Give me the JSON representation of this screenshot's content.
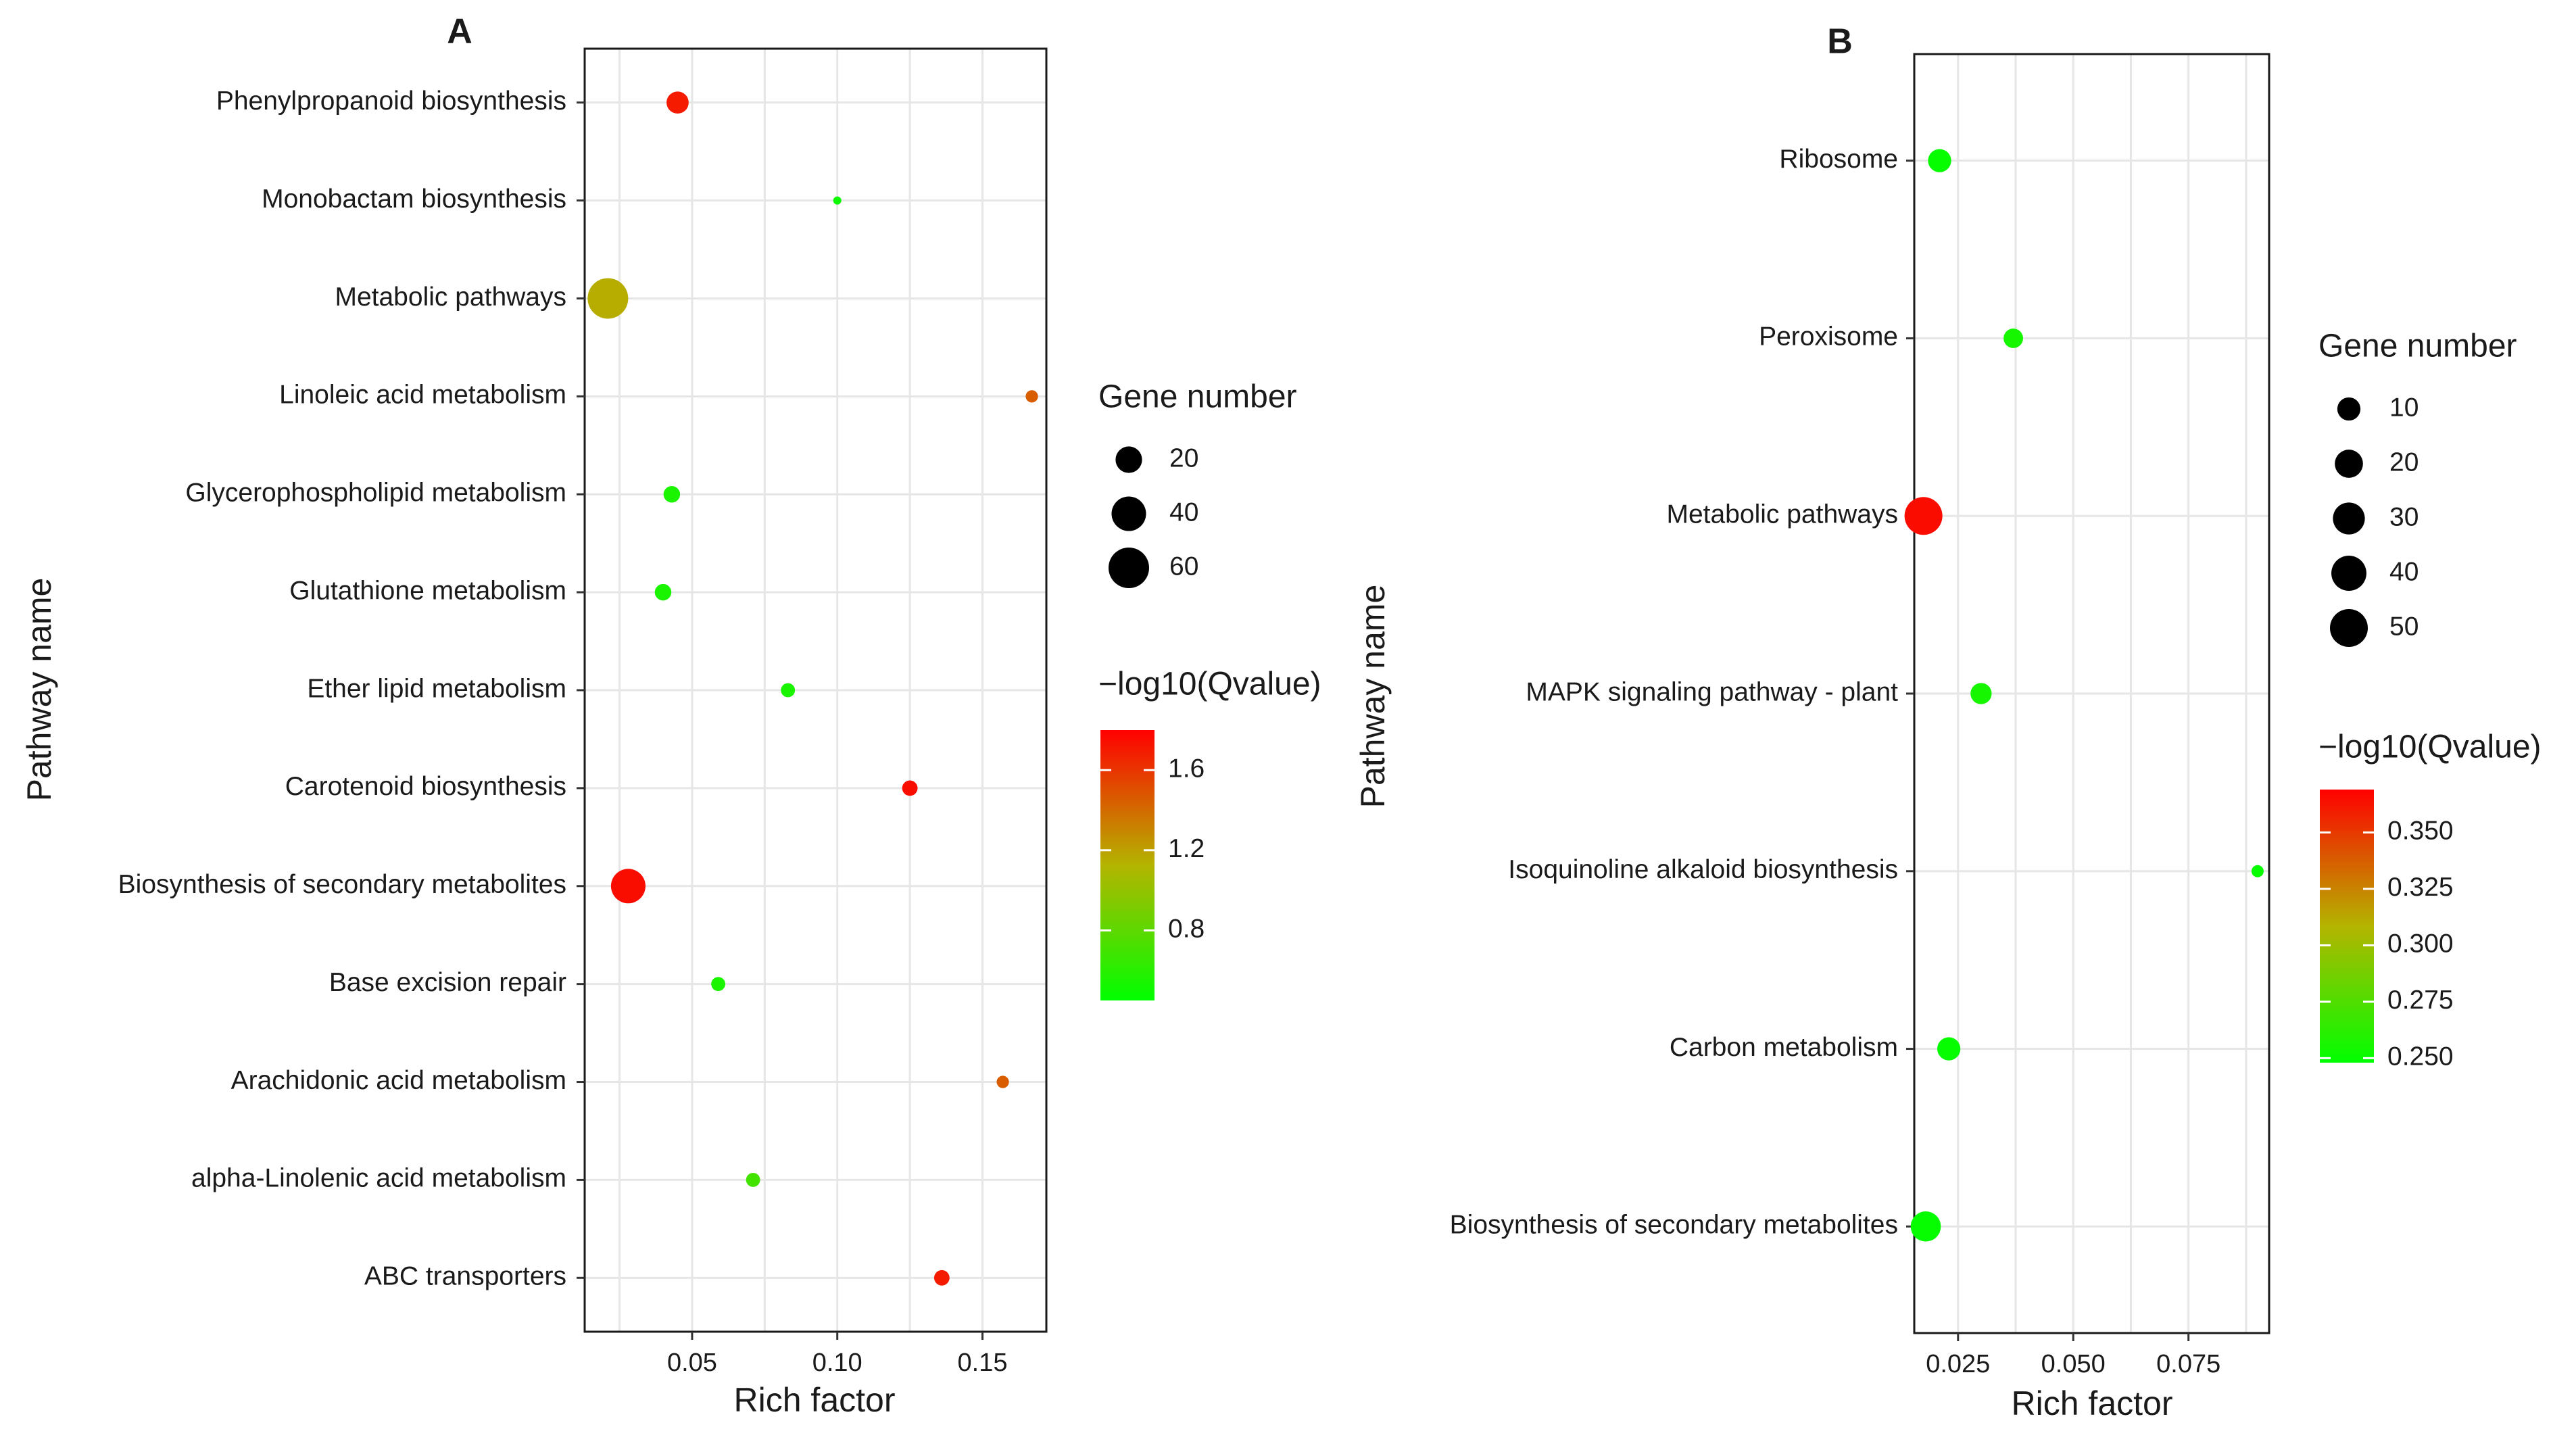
{
  "chart_data": [
    {
      "type": "scatter",
      "panel_label": "A",
      "xlabel": "Rich factor",
      "ylabel": "Pathway name",
      "xlim": [
        0.013,
        0.172
      ],
      "x_ticks": [
        0.05,
        0.1,
        0.15
      ],
      "x_tick_labels": [
        "0.05",
        "0.10",
        "0.15"
      ],
      "size_legend": {
        "title": "Gene number",
        "values": [
          20,
          40,
          60
        ],
        "labels": [
          "20",
          "40",
          "60"
        ]
      },
      "color_legend": {
        "title": "−log10(Qvalue)",
        "range": [
          0.45,
          1.8
        ],
        "ticks": [
          1.6,
          1.2,
          0.8
        ],
        "tick_labels": [
          "1.6",
          "1.2",
          "0.8"
        ],
        "low_color": "#00ff00",
        "high_color": "#ff0000"
      },
      "categories": [
        "Phenylpropanoid biosynthesis",
        "Monobactam biosynthesis",
        "Metabolic pathways",
        "Linoleic acid metabolism",
        "Glycerophospholipid metabolism",
        "Glutathione metabolism",
        "Ether lipid metabolism",
        "Carotenoid biosynthesis",
        "Biosynthesis of secondary metabolites",
        "Base excision repair",
        "Arachidonic acid metabolism",
        "alpha-Linolenic acid metabolism",
        "ABC transporters"
      ],
      "points": [
        {
          "pathway": "Phenylpropanoid biosynthesis",
          "rich_factor": 0.045,
          "gene_number": 12,
          "neg_log10_q": 1.7
        },
        {
          "pathway": "Monobactam biosynthesis",
          "rich_factor": 0.1,
          "gene_number": 1,
          "neg_log10_q": 0.5
        },
        {
          "pathway": "Metabolic pathways",
          "rich_factor": 0.021,
          "gene_number": 60,
          "neg_log10_q": 1.15
        },
        {
          "pathway": "Linoleic acid metabolism",
          "rich_factor": 0.167,
          "gene_number": 2,
          "neg_log10_q": 1.45
        },
        {
          "pathway": "Glycerophospholipid metabolism",
          "rich_factor": 0.043,
          "gene_number": 5,
          "neg_log10_q": 0.55
        },
        {
          "pathway": "Glutathione metabolism",
          "rich_factor": 0.04,
          "gene_number": 5,
          "neg_log10_q": 0.55
        },
        {
          "pathway": "Ether lipid metabolism",
          "rich_factor": 0.083,
          "gene_number": 3,
          "neg_log10_q": 0.55
        },
        {
          "pathway": "Carotenoid biosynthesis",
          "rich_factor": 0.125,
          "gene_number": 4,
          "neg_log10_q": 1.75
        },
        {
          "pathway": "Biosynthesis of secondary metabolites",
          "rich_factor": 0.028,
          "gene_number": 40,
          "neg_log10_q": 1.75
        },
        {
          "pathway": "Base excision repair",
          "rich_factor": 0.059,
          "gene_number": 3,
          "neg_log10_q": 0.55
        },
        {
          "pathway": "Arachidonic acid metabolism",
          "rich_factor": 0.157,
          "gene_number": 2,
          "neg_log10_q": 1.45
        },
        {
          "pathway": "alpha-Linolenic acid metabolism",
          "rich_factor": 0.071,
          "gene_number": 3,
          "neg_log10_q": 0.7
        },
        {
          "pathway": "ABC transporters",
          "rich_factor": 0.136,
          "gene_number": 4,
          "neg_log10_q": 1.7
        }
      ]
    },
    {
      "type": "scatter",
      "panel_label": "B",
      "xlabel": "Rich factor",
      "ylabel": "Pathway name",
      "xlim": [
        0.0155,
        0.0925
      ],
      "x_ticks": [
        0.025,
        0.05,
        0.075
      ],
      "x_tick_labels": [
        "0.025",
        "0.050",
        "0.075"
      ],
      "size_legend": {
        "title": "Gene number",
        "values": [
          10,
          20,
          30,
          40,
          50
        ],
        "labels": [
          "10",
          "20",
          "30",
          "40",
          "50"
        ]
      },
      "color_legend": {
        "title": "−log10(Qvalue)",
        "range": [
          0.248,
          0.369
        ],
        "ticks": [
          0.35,
          0.325,
          0.3,
          0.275,
          0.25
        ],
        "tick_labels": [
          "0.350",
          "0.325",
          "0.300",
          "0.275",
          "0.250"
        ],
        "low_color": "#00ff00",
        "high_color": "#ff0000"
      },
      "categories": [
        "Ribosome",
        "Peroxisome",
        "Metabolic pathways",
        "MAPK signaling pathway - plant",
        "Isoquinoline alkaloid biosynthesis",
        "Carbon metabolism",
        "Biosynthesis of secondary metabolites"
      ],
      "points": [
        {
          "pathway": "Ribosome",
          "rich_factor": 0.021,
          "gene_number": 10,
          "neg_log10_q": 0.25
        },
        {
          "pathway": "Peroxisome",
          "rich_factor": 0.037,
          "gene_number": 5,
          "neg_log10_q": 0.255
        },
        {
          "pathway": "Metabolic pathways",
          "rich_factor": 0.0175,
          "gene_number": 50,
          "neg_log10_q": 0.365
        },
        {
          "pathway": "MAPK signaling pathway - plant",
          "rich_factor": 0.03,
          "gene_number": 7,
          "neg_log10_q": 0.255
        },
        {
          "pathway": "Isoquinoline alkaloid biosynthesis",
          "rich_factor": 0.09,
          "gene_number": 1,
          "neg_log10_q": 0.25
        },
        {
          "pathway": "Carbon metabolism",
          "rich_factor": 0.023,
          "gene_number": 10,
          "neg_log10_q": 0.25
        },
        {
          "pathway": "Biosynthesis of secondary metabolites",
          "rich_factor": 0.018,
          "gene_number": 25,
          "neg_log10_q": 0.25
        }
      ]
    }
  ]
}
